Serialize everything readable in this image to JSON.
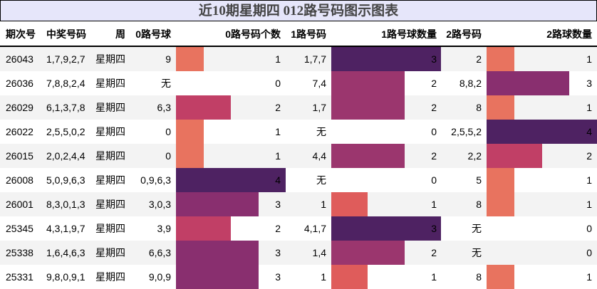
{
  "title": "近10期星期四 012路号码图示图表",
  "columns": {
    "issue": "期次号",
    "numbers": "中奖号码",
    "weekday": "周",
    "zero_balls": "0路号球",
    "zero_count": "0路号码个数",
    "one_balls": "1路号码",
    "one_count": "1路号球数量",
    "two_balls": "2路号码",
    "two_count": "2路球数量"
  },
  "colors": {
    "title_bg": "#e6e6fa",
    "row_alt_bg": "#f3f3f3",
    "zero_bar": {
      "1": "#e8735f",
      "2": "#c13f66",
      "3": "#892f6f",
      "4": "#4e2262"
    },
    "one_bar": {
      "1": "#df5c5b",
      "2": "#9b366e",
      "3": "#4e2262"
    },
    "two_bar": {
      "1": "#e8735f",
      "2": "#c13f66",
      "3": "#892f6f",
      "4": "#4e2262"
    }
  },
  "rows": [
    {
      "issue": "26043",
      "numbers": "1,7,9,2,7",
      "weekday": "星期四",
      "zero_balls": "9",
      "zero_count": "1",
      "one_balls": "1,7,7",
      "one_count": "3",
      "two_balls": "2",
      "two_count": "1"
    },
    {
      "issue": "26036",
      "numbers": "7,8,8,2,4",
      "weekday": "星期四",
      "zero_balls": "无",
      "zero_count": "0",
      "one_balls": "7,4",
      "one_count": "2",
      "two_balls": "8,8,2",
      "two_count": "3"
    },
    {
      "issue": "26029",
      "numbers": "6,1,3,7,8",
      "weekday": "星期四",
      "zero_balls": "6,3",
      "zero_count": "2",
      "one_balls": "1,7",
      "one_count": "2",
      "two_balls": "8",
      "two_count": "1"
    },
    {
      "issue": "26022",
      "numbers": "2,5,5,0,2",
      "weekday": "星期四",
      "zero_balls": "0",
      "zero_count": "1",
      "one_balls": "无",
      "one_count": "0",
      "two_balls": "2,5,5,2",
      "two_count": "4"
    },
    {
      "issue": "26015",
      "numbers": "2,0,2,4,4",
      "weekday": "星期四",
      "zero_balls": "0",
      "zero_count": "1",
      "one_balls": "4,4",
      "one_count": "2",
      "two_balls": "2,2",
      "two_count": "2"
    },
    {
      "issue": "26008",
      "numbers": "5,0,9,6,3",
      "weekday": "星期四",
      "zero_balls": "0,9,6,3",
      "zero_count": "4",
      "one_balls": "无",
      "one_count": "0",
      "two_balls": "5",
      "two_count": "1"
    },
    {
      "issue": "26001",
      "numbers": "8,3,0,1,3",
      "weekday": "星期四",
      "zero_balls": "3,0,3",
      "zero_count": "3",
      "one_balls": "1",
      "one_count": "1",
      "two_balls": "8",
      "two_count": "1"
    },
    {
      "issue": "25345",
      "numbers": "4,3,1,9,7",
      "weekday": "星期四",
      "zero_balls": "3,9",
      "zero_count": "2",
      "one_balls": "4,1,7",
      "one_count": "3",
      "two_balls": "无",
      "two_count": "0"
    },
    {
      "issue": "25338",
      "numbers": "1,6,4,6,3",
      "weekday": "星期四",
      "zero_balls": "6,6,3",
      "zero_count": "3",
      "one_balls": "1,4",
      "one_count": "2",
      "two_balls": "无",
      "two_count": "0"
    },
    {
      "issue": "25331",
      "numbers": "9,8,0,9,1",
      "weekday": "星期四",
      "zero_balls": "9,0,9",
      "zero_count": "3",
      "one_balls": "1",
      "one_count": "1",
      "two_balls": "8",
      "two_count": "1"
    }
  ]
}
